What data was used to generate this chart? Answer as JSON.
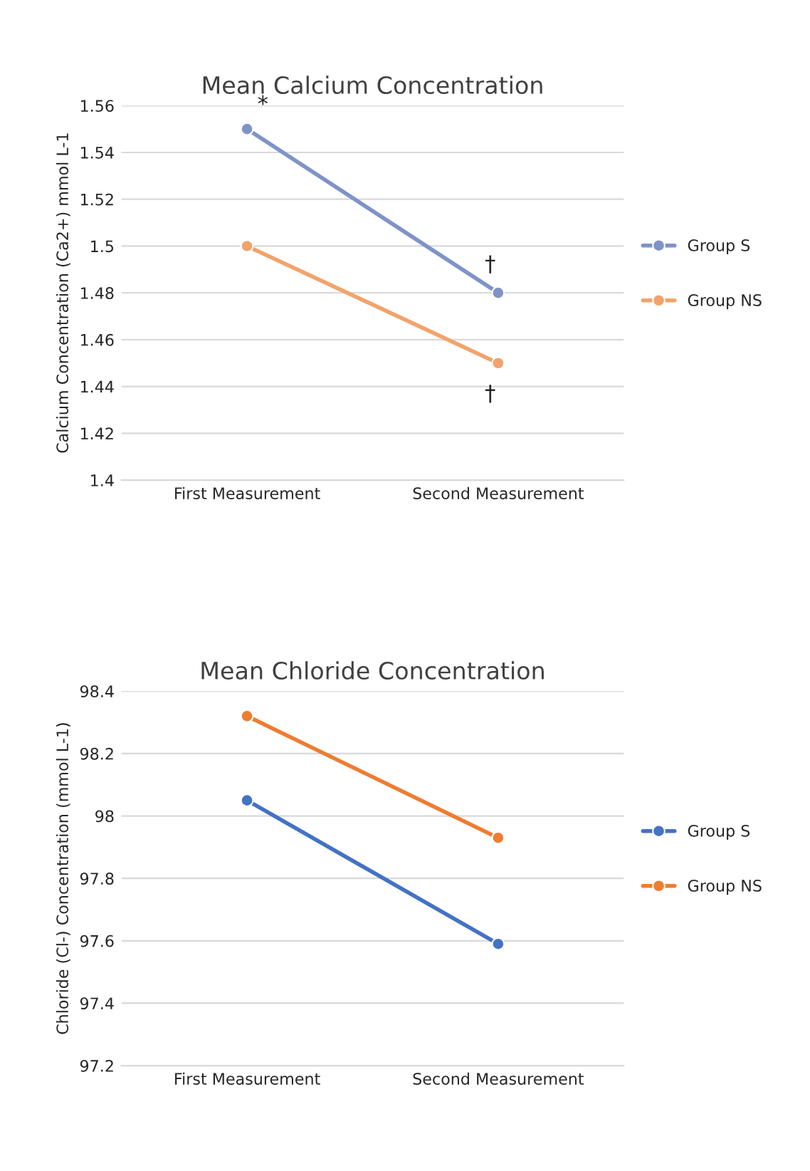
{
  "chart_data": [
    {
      "type": "line",
      "title": "Mean Calcium Concentration",
      "ylabel": "Calcium Concentration (Ca2+) mmol L-1",
      "categories": [
        "First Measurement",
        "Second Measurement"
      ],
      "series": [
        {
          "name": "Group S",
          "color": "#7f93c8",
          "values": [
            1.55,
            1.48
          ]
        },
        {
          "name": "Group NS",
          "color": "#f2a36b",
          "values": [
            1.5,
            1.45
          ]
        }
      ],
      "ylim": [
        1.4,
        1.56
      ],
      "yticks": [
        1.4,
        1.42,
        1.44,
        1.46,
        1.48,
        1.5,
        1.52,
        1.54,
        1.56
      ],
      "annotations": [
        {
          "text": "*",
          "x": "First Measurement",
          "y": 1.55
        },
        {
          "text": "†",
          "x": "Second Measurement",
          "y": 1.48
        },
        {
          "text": "†",
          "x": "Second Measurement",
          "y": 1.45
        }
      ],
      "grid": "y",
      "legend": "right",
      "marker": "circle",
      "line_style": "solid"
    },
    {
      "type": "line",
      "title": "Mean Chloride Concentration",
      "ylabel": "Chloride (Cl-) Concentration (mmol L-1)",
      "categories": [
        "First Measurement",
        "Second Measurement"
      ],
      "series": [
        {
          "name": "Group S",
          "color": "#4472c4",
          "values": [
            98.05,
            97.59
          ]
        },
        {
          "name": "Group NS",
          "color": "#ed7d31",
          "values": [
            98.32,
            97.93
          ]
        }
      ],
      "ylim": [
        97.2,
        98.4
      ],
      "yticks": [
        97.2,
        97.4,
        97.6,
        97.8,
        98,
        98.2,
        98.4
      ],
      "grid": "y",
      "legend": "right",
      "marker": "circle",
      "line_style": "solid"
    }
  ]
}
